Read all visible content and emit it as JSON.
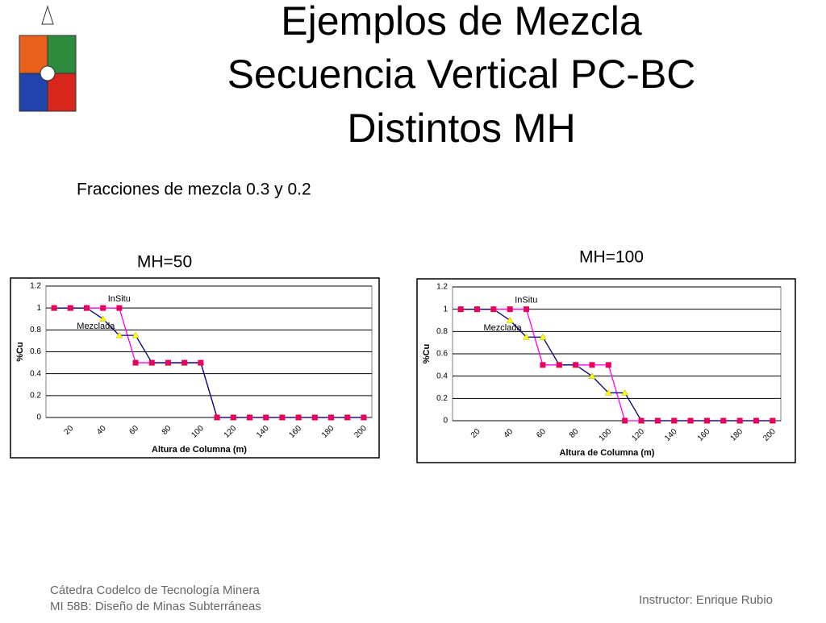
{
  "title_lines": [
    "Ejemplos de Mezcla",
    "Secuencia Vertical PC-BC",
    "Distintos MH"
  ],
  "subtitle": "Fracciones de mezcla 0.3 y 0.2",
  "footer_left": [
    "Cátedra Codelco de Tecnología Minera",
    "MI 58B: Diseño de Minas Subterráneas"
  ],
  "footer_right": "Instructor: Enrique Rubio",
  "chart_data": [
    {
      "type": "line",
      "title": "MH=50",
      "x_label": "Altura de Columna (m)",
      "y_label": "%Cu",
      "categories": [
        null,
        "20",
        null,
        "40",
        null,
        "60",
        null,
        "80",
        null,
        "100",
        null,
        "120",
        null,
        "140",
        null,
        "160",
        null,
        "180",
        null,
        "200"
      ],
      "ylim": [
        0,
        1.2
      ],
      "yticks": [
        0,
        0.2,
        0.4,
        0.6,
        0.8,
        1,
        1.2
      ],
      "grid": true,
      "series": [
        {
          "name": "InSitu",
          "color": "#ff00ff",
          "marker": "square",
          "marker_color": "#e8005a",
          "values": [
            1,
            1,
            1,
            1,
            1,
            0.5,
            0.5,
            0.5,
            0.5,
            0.5,
            0,
            0,
            0,
            0,
            0,
            0,
            0,
            0,
            0,
            0
          ]
        },
        {
          "name": "Mezclada",
          "color": "#000080",
          "marker": "triangle",
          "marker_color": "#ffff00",
          "values": [
            1,
            1,
            1,
            0.9,
            0.75,
            0.75,
            0.5,
            0.5,
            0.5,
            0.5,
            0,
            0,
            0,
            0,
            0,
            0,
            0,
            0,
            0,
            0
          ]
        }
      ]
    },
    {
      "type": "line",
      "title": "MH=100",
      "x_label": "Altura de Columna (m)",
      "y_label": "%Cu",
      "categories": [
        null,
        "20",
        null,
        "40",
        null,
        "60",
        null,
        "80",
        null,
        "100",
        null,
        "120",
        null,
        "140",
        null,
        "160",
        null,
        "180",
        null,
        "200"
      ],
      "ylim": [
        0,
        1.2
      ],
      "yticks": [
        0,
        0.2,
        0.4,
        0.6,
        0.8,
        1,
        1.2
      ],
      "grid": true,
      "series": [
        {
          "name": "InSitu",
          "color": "#ff00ff",
          "marker": "square",
          "marker_color": "#e8005a",
          "values": [
            1,
            1,
            1,
            1,
            1,
            0.5,
            0.5,
            0.5,
            0.5,
            0.5,
            0,
            0,
            0,
            0,
            0,
            0,
            0,
            0,
            0,
            0
          ]
        },
        {
          "name": "Mezclada",
          "color": "#000080",
          "marker": "triangle",
          "marker_color": "#ffff00",
          "values": [
            1,
            1,
            1,
            0.9,
            0.75,
            0.75,
            0.5,
            0.5,
            0.4,
            0.25,
            0.25,
            0,
            0,
            0,
            0,
            0,
            0,
            0,
            0,
            0
          ]
        }
      ]
    }
  ]
}
